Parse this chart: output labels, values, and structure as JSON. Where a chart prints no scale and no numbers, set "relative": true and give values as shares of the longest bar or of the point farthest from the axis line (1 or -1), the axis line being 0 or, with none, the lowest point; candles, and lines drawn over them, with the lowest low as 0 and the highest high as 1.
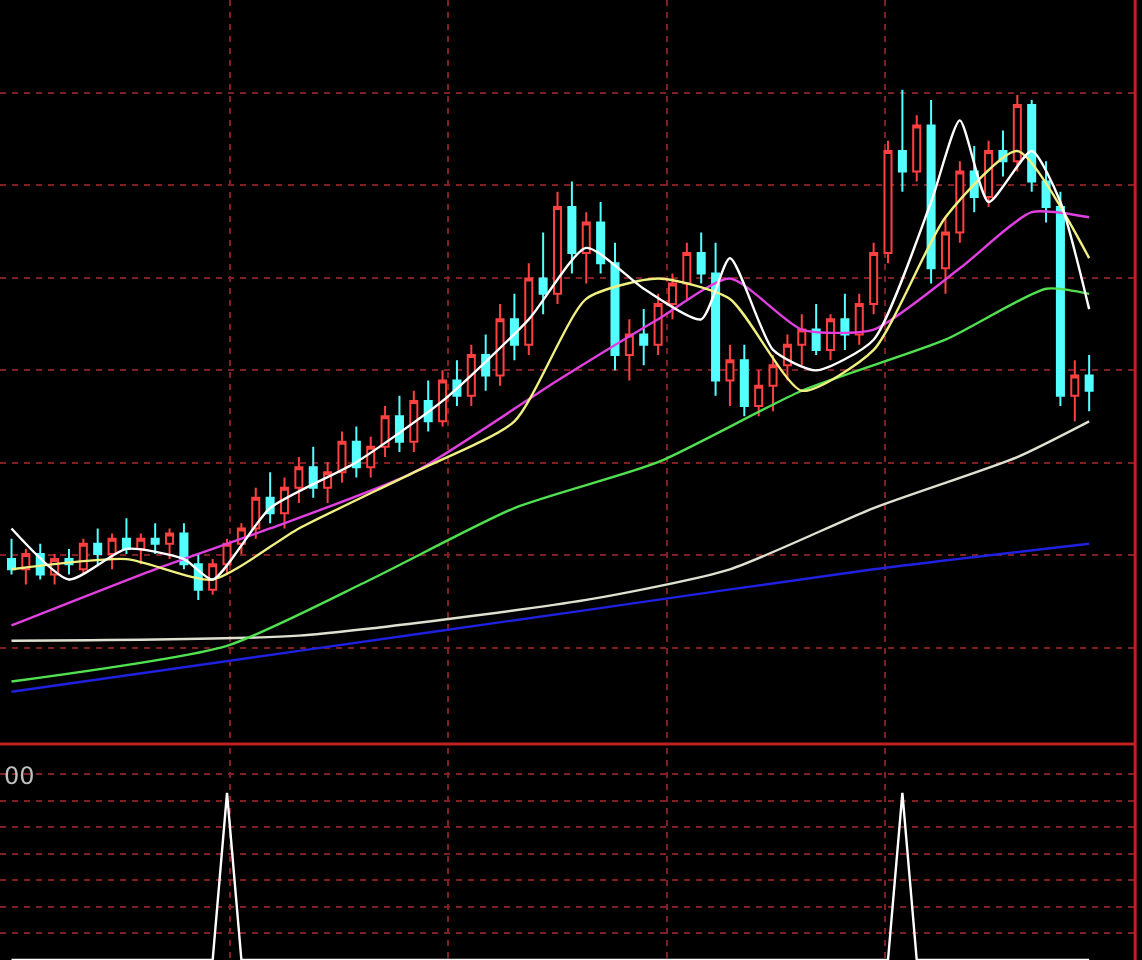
{
  "chart_data": [
    {
      "type": "candlestick",
      "relative": true,
      "grid": true,
      "categories": [
        null,
        null,
        null,
        null,
        null,
        null,
        null,
        null,
        null,
        null,
        null,
        null,
        null,
        null,
        null,
        null,
        null,
        null,
        null,
        null,
        null,
        null,
        null,
        null,
        null,
        null,
        null,
        null,
        null,
        null,
        null,
        null,
        null,
        null,
        null,
        null,
        null,
        null,
        null,
        null,
        null,
        null,
        null,
        null,
        null,
        null,
        null,
        null,
        null,
        null,
        null,
        null,
        null,
        null,
        null,
        null,
        null,
        null,
        null,
        null,
        null,
        null,
        null,
        null,
        null,
        null,
        null,
        null,
        null,
        null,
        null,
        null,
        null,
        null,
        null,
        null
      ],
      "ohlc": [
        [
          0.08,
          0.12,
          0.05,
          0.06
        ],
        [
          0.06,
          0.1,
          0.03,
          0.09
        ],
        [
          0.09,
          0.11,
          0.04,
          0.05
        ],
        [
          0.05,
          0.09,
          0.03,
          0.08
        ],
        [
          0.08,
          0.1,
          0.05,
          0.07
        ],
        [
          0.06,
          0.12,
          0.05,
          0.11
        ],
        [
          0.11,
          0.14,
          0.07,
          0.09
        ],
        [
          0.09,
          0.13,
          0.06,
          0.12
        ],
        [
          0.12,
          0.16,
          0.09,
          0.1
        ],
        [
          0.1,
          0.13,
          0.07,
          0.12
        ],
        [
          0.12,
          0.15,
          0.09,
          0.11
        ],
        [
          0.11,
          0.14,
          0.08,
          0.13
        ],
        [
          0.13,
          0.15,
          0.06,
          0.07
        ],
        [
          0.07,
          0.09,
          0.0,
          0.02
        ],
        [
          0.02,
          0.08,
          0.01,
          0.07
        ],
        [
          0.07,
          0.12,
          0.05,
          0.11
        ],
        [
          0.11,
          0.15,
          0.09,
          0.14
        ],
        [
          0.14,
          0.22,
          0.12,
          0.2
        ],
        [
          0.2,
          0.25,
          0.15,
          0.17
        ],
        [
          0.17,
          0.24,
          0.14,
          0.22
        ],
        [
          0.22,
          0.28,
          0.19,
          0.26
        ],
        [
          0.26,
          0.3,
          0.2,
          0.22
        ],
        [
          0.22,
          0.27,
          0.19,
          0.25
        ],
        [
          0.25,
          0.33,
          0.23,
          0.31
        ],
        [
          0.31,
          0.34,
          0.24,
          0.26
        ],
        [
          0.26,
          0.32,
          0.24,
          0.3
        ],
        [
          0.3,
          0.38,
          0.28,
          0.36
        ],
        [
          0.36,
          0.4,
          0.29,
          0.31
        ],
        [
          0.31,
          0.41,
          0.29,
          0.39
        ],
        [
          0.39,
          0.43,
          0.33,
          0.35
        ],
        [
          0.35,
          0.45,
          0.34,
          0.43
        ],
        [
          0.43,
          0.47,
          0.38,
          0.4
        ],
        [
          0.4,
          0.5,
          0.38,
          0.48
        ],
        [
          0.48,
          0.52,
          0.41,
          0.44
        ],
        [
          0.44,
          0.58,
          0.42,
          0.55
        ],
        [
          0.55,
          0.6,
          0.47,
          0.5
        ],
        [
          0.5,
          0.66,
          0.48,
          0.63
        ],
        [
          0.63,
          0.72,
          0.56,
          0.6
        ],
        [
          0.6,
          0.8,
          0.58,
          0.77
        ],
        [
          0.77,
          0.82,
          0.64,
          0.68
        ],
        [
          0.68,
          0.76,
          0.62,
          0.74
        ],
        [
          0.74,
          0.78,
          0.64,
          0.66
        ],
        [
          0.66,
          0.7,
          0.45,
          0.48
        ],
        [
          0.48,
          0.55,
          0.43,
          0.52
        ],
        [
          0.52,
          0.57,
          0.46,
          0.5
        ],
        [
          0.5,
          0.6,
          0.48,
          0.58
        ],
        [
          0.58,
          0.64,
          0.55,
          0.62
        ],
        [
          0.62,
          0.7,
          0.59,
          0.68
        ],
        [
          0.68,
          0.72,
          0.62,
          0.64
        ],
        [
          0.64,
          0.7,
          0.4,
          0.43
        ],
        [
          0.43,
          0.5,
          0.38,
          0.47
        ],
        [
          0.47,
          0.5,
          0.36,
          0.38
        ],
        [
          0.38,
          0.45,
          0.36,
          0.42
        ],
        [
          0.42,
          0.48,
          0.37,
          0.46
        ],
        [
          0.46,
          0.52,
          0.43,
          0.5
        ],
        [
          0.5,
          0.56,
          0.46,
          0.53
        ],
        [
          0.53,
          0.58,
          0.48,
          0.49
        ],
        [
          0.49,
          0.56,
          0.47,
          0.55
        ],
        [
          0.55,
          0.6,
          0.49,
          0.52
        ],
        [
          0.52,
          0.6,
          0.5,
          0.58
        ],
        [
          0.58,
          0.7,
          0.56,
          0.68
        ],
        [
          0.68,
          0.9,
          0.66,
          0.88
        ],
        [
          0.88,
          1.0,
          0.8,
          0.84
        ],
        [
          0.84,
          0.95,
          0.82,
          0.93
        ],
        [
          0.93,
          0.98,
          0.62,
          0.65
        ],
        [
          0.65,
          0.75,
          0.6,
          0.72
        ],
        [
          0.72,
          0.86,
          0.7,
          0.84
        ],
        [
          0.84,
          0.89,
          0.76,
          0.79
        ],
        [
          0.79,
          0.9,
          0.77,
          0.88
        ],
        [
          0.88,
          0.92,
          0.83,
          0.86
        ],
        [
          0.86,
          0.99,
          0.84,
          0.97
        ],
        [
          0.97,
          0.98,
          0.8,
          0.82
        ],
        [
          0.82,
          0.86,
          0.74,
          0.77
        ],
        [
          0.77,
          0.8,
          0.38,
          0.4
        ],
        [
          0.4,
          0.47,
          0.35,
          0.44
        ],
        [
          0.44,
          0.48,
          0.37,
          0.41
        ]
      ],
      "series": [
        {
          "type": "line",
          "color": "#2020e0",
          "values": [
            -0.18,
            null,
            null,
            null,
            null,
            null,
            null,
            null,
            null,
            null,
            null,
            null,
            null,
            null,
            null,
            null,
            null,
            null,
            null,
            null,
            -0.1,
            null,
            null,
            null,
            null,
            null,
            null,
            null,
            null,
            null,
            null,
            null,
            null,
            null,
            null,
            null,
            null,
            null,
            null,
            null,
            -0.02,
            null,
            null,
            null,
            null,
            null,
            null,
            null,
            null,
            null,
            null,
            null,
            null,
            null,
            null,
            null,
            null,
            null,
            null,
            null,
            0.06,
            null,
            null,
            null,
            null,
            null,
            null,
            null,
            null,
            null,
            null,
            null,
            null,
            null,
            null,
            0.11
          ]
        },
        {
          "type": "line",
          "color": "#e0e0d0",
          "values": [
            -0.08,
            null,
            null,
            null,
            null,
            null,
            null,
            null,
            null,
            null,
            null,
            null,
            null,
            null,
            null,
            null,
            null,
            null,
            null,
            null,
            -0.07,
            null,
            null,
            null,
            null,
            null,
            null,
            null,
            null,
            null,
            null,
            null,
            null,
            null,
            null,
            null,
            null,
            null,
            null,
            null,
            0.0,
            null,
            null,
            null,
            null,
            null,
            null,
            null,
            null,
            null,
            0.06,
            null,
            null,
            null,
            null,
            null,
            null,
            null,
            null,
            null,
            0.18,
            null,
            null,
            null,
            null,
            null,
            null,
            null,
            null,
            null,
            0.28,
            null,
            null,
            null,
            null,
            0.35
          ]
        },
        {
          "type": "line",
          "color": "#50e050",
          "values": [
            -0.16,
            null,
            null,
            null,
            null,
            null,
            null,
            null,
            null,
            null,
            null,
            null,
            null,
            null,
            null,
            -0.09,
            null,
            null,
            null,
            null,
            null,
            null,
            null,
            null,
            null,
            0.04,
            null,
            null,
            null,
            null,
            null,
            null,
            null,
            null,
            null,
            0.18,
            null,
            null,
            null,
            null,
            null,
            null,
            null,
            null,
            null,
            0.27,
            null,
            null,
            null,
            null,
            null,
            null,
            null,
            null,
            null,
            0.41,
            null,
            null,
            null,
            null,
            null,
            null,
            null,
            null,
            null,
            0.51,
            null,
            null,
            null,
            null,
            null,
            null,
            0.61,
            null,
            null,
            0.6
          ]
        },
        {
          "type": "line",
          "color": "#e040e0",
          "values": [
            -0.05,
            null,
            null,
            null,
            null,
            null,
            null,
            null,
            null,
            null,
            0.06,
            null,
            null,
            null,
            null,
            null,
            null,
            null,
            0.14,
            null,
            null,
            null,
            null,
            null,
            null,
            null,
            null,
            null,
            0.25,
            null,
            null,
            null,
            null,
            null,
            null,
            null,
            null,
            null,
            0.43,
            null,
            null,
            null,
            null,
            null,
            null,
            0.55,
            null,
            null,
            null,
            null,
            0.63,
            null,
            null,
            null,
            null,
            0.53,
            null,
            null,
            null,
            null,
            0.53,
            null,
            null,
            null,
            null,
            null,
            0.65,
            null,
            null,
            null,
            null,
            0.76,
            null,
            null,
            null,
            0.75
          ]
        },
        {
          "type": "line",
          "color": "#f0f080",
          "values": [
            0.06,
            null,
            null,
            null,
            null,
            null,
            null,
            null,
            0.08,
            null,
            null,
            null,
            null,
            null,
            0.04,
            null,
            null,
            null,
            null,
            null,
            0.14,
            null,
            null,
            null,
            null,
            null,
            null,
            null,
            0.25,
            null,
            null,
            null,
            null,
            null,
            null,
            0.35,
            null,
            null,
            null,
            null,
            0.59,
            null,
            null,
            null,
            null,
            0.63,
            null,
            null,
            null,
            null,
            0.59,
            null,
            null,
            null,
            null,
            0.41,
            null,
            null,
            null,
            null,
            0.49,
            null,
            null,
            null,
            null,
            0.75,
            null,
            null,
            null,
            null,
            0.88,
            null,
            null,
            null,
            null,
            0.67
          ]
        },
        {
          "type": "line",
          "color": "#ffffff",
          "values": [
            0.14,
            null,
            null,
            null,
            0.04,
            null,
            null,
            null,
            0.1,
            null,
            null,
            null,
            0.08,
            null,
            0.04,
            null,
            null,
            null,
            0.18,
            null,
            null,
            null,
            null,
            null,
            0.27,
            null,
            null,
            null,
            null,
            null,
            0.39,
            null,
            null,
            null,
            null,
            null,
            0.55,
            null,
            null,
            null,
            0.69,
            null,
            null,
            null,
            0.61,
            null,
            null,
            null,
            0.55,
            null,
            0.67,
            null,
            null,
            0.49,
            null,
            null,
            0.45,
            null,
            null,
            null,
            0.51,
            null,
            null,
            null,
            0.78,
            null,
            0.94,
            null,
            0.78,
            null,
            null,
            0.88,
            null,
            0.78,
            null,
            0.57
          ]
        }
      ]
    },
    {
      "type": "line",
      "relative": true,
      "grid": true,
      "color": "#ffffff",
      "annotations": [
        "00"
      ],
      "categories": [
        null,
        null,
        null,
        null,
        null,
        null,
        null,
        null,
        null,
        null,
        null,
        null,
        null,
        null,
        null,
        null,
        null,
        null,
        null,
        null,
        null,
        null,
        null,
        null,
        null,
        null,
        null,
        null,
        null,
        null,
        null,
        null,
        null,
        null,
        null,
        null,
        null,
        null,
        null,
        null,
        null,
        null,
        null,
        null,
        null,
        null,
        null,
        null,
        null,
        null,
        null,
        null,
        null,
        null,
        null,
        null,
        null,
        null,
        null,
        null,
        null,
        null,
        null,
        null,
        null,
        null,
        null,
        null,
        null,
        null,
        null,
        null,
        null,
        null,
        null,
        null
      ],
      "values": [
        0,
        0,
        0,
        0,
        0,
        0,
        0,
        0,
        0,
        0,
        0,
        0,
        0,
        0,
        0,
        1,
        0,
        0,
        0,
        0,
        0,
        0,
        0,
        0,
        0,
        0,
        0,
        0,
        0,
        0,
        0,
        0,
        0,
        0,
        0,
        0,
        0,
        0,
        0,
        0,
        0,
        0,
        0,
        0,
        0,
        0,
        0,
        0,
        0,
        0,
        0,
        0,
        0,
        0,
        0,
        0,
        0,
        0,
        0,
        0,
        0,
        0,
        1,
        0,
        0,
        0,
        0,
        0,
        0,
        0,
        0,
        0,
        0,
        0,
        0,
        0
      ]
    }
  ]
}
